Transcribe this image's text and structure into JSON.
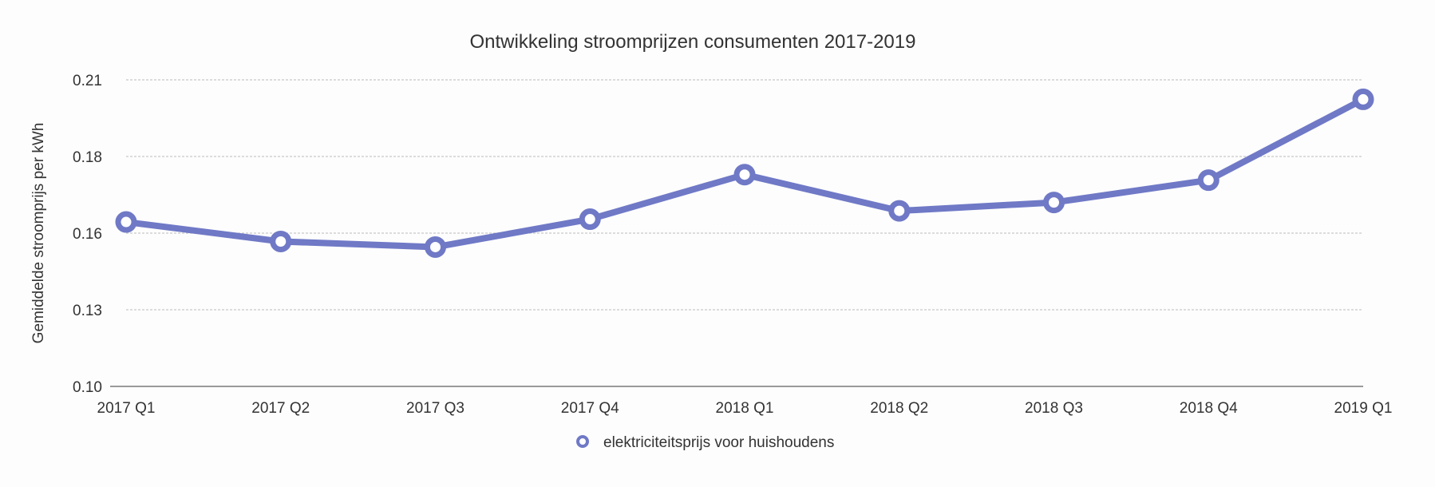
{
  "chart_data": {
    "type": "line",
    "title": "Ontwikkeling stroomprijzen consumenten 2017-2019",
    "xlabel": "",
    "ylabel": "Gemiddelde stroomprijs per kWh",
    "categories": [
      "2017 Q1",
      "2017 Q2",
      "2017 Q3",
      "2017 Q4",
      "2018 Q1",
      "2018 Q2",
      "2018 Q3",
      "2018 Q4",
      "2019 Q1"
    ],
    "series": [
      {
        "name": "elektriciteitsprijs voor huishoudens",
        "color": "#6f79c6",
        "values": [
          0.159,
          0.152,
          0.15,
          0.16,
          0.176,
          0.163,
          0.166,
          0.174,
          0.203
        ]
      }
    ],
    "ylim": [
      0.1,
      0.21
    ],
    "yticks": [
      0.1,
      0.1275,
      0.155,
      0.1825,
      0.21
    ],
    "ytick_labels": [
      "0.10",
      "0.13",
      "0.16",
      "0.18",
      "0.21"
    ],
    "grid": true,
    "legend": "bottom-center"
  }
}
